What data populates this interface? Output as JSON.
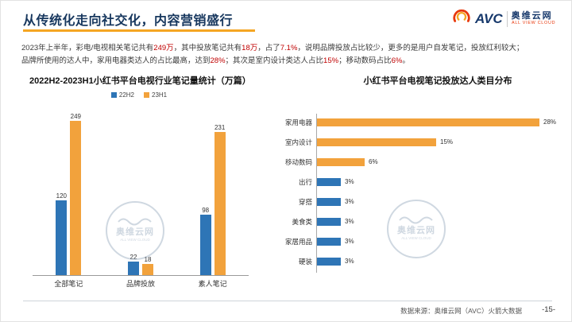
{
  "slide": {
    "title": "从传统化走向社交化，内容营销盛行",
    "footer": {
      "source": "数据来源：奥维云网（AVC）火箭大数据",
      "page": "-15-"
    }
  },
  "logo": {
    "abbr": "AVC",
    "name": "奥维云网",
    "tagline": "ALL VIEW CLOUD"
  },
  "watermark": {
    "name": "奥维云网",
    "tagline": "ALL VIEW CLOUD"
  },
  "body": {
    "line1": [
      {
        "text": "2023年上半年，彩电/电视相关笔记共有",
        "red": false
      },
      {
        "text": "249万",
        "red": true
      },
      {
        "text": "，其中投放笔记共有",
        "red": false
      },
      {
        "text": "18万",
        "red": true
      },
      {
        "text": "，占了",
        "red": false
      },
      {
        "text": "7.1%",
        "red": true
      },
      {
        "text": "，说明品牌投放占比较少，更多的是用户自发笔记，投放红利较大；",
        "red": false
      }
    ],
    "line2": [
      {
        "text": "品牌所使用的达人中，家用电器类达人的占比最高，达到",
        "red": false
      },
      {
        "text": "28%",
        "red": true
      },
      {
        "text": "；其次是室内设计类达人占比",
        "red": false
      },
      {
        "text": "15%",
        "red": true
      },
      {
        "text": "；移动数码占比",
        "red": false
      },
      {
        "text": "6%",
        "red": true
      },
      {
        "text": "。",
        "red": false
      }
    ]
  },
  "chart_data": [
    {
      "type": "bar",
      "title": "2022H2-2023H1小红书平台电视行业笔记量统计（万篇）",
      "categories": [
        "全部笔记",
        "品牌投放",
        "素人笔记"
      ],
      "series": [
        {
          "name": "22H2",
          "color": "#2e75b6",
          "values": [
            120,
            22,
            98
          ]
        },
        {
          "name": "23H1",
          "color": "#f2a23c",
          "values": [
            249,
            18,
            231
          ]
        }
      ],
      "ylim": [
        0,
        260
      ],
      "data_labels": true,
      "legend_position": "top",
      "grid": false
    },
    {
      "type": "bar",
      "orientation": "horizontal",
      "title": "小红书平台电视笔记投放达人类目分布",
      "categories": [
        "家用电器",
        "室内设计",
        "移动数码",
        "出行",
        "穿搭",
        "美食类",
        "家居用品",
        "硬装"
      ],
      "values": [
        28,
        15,
        6,
        3,
        3,
        3,
        3,
        3
      ],
      "value_labels": [
        "28%",
        "15%",
        "6%",
        "3%",
        "3%",
        "3%",
        "3%",
        "3%"
      ],
      "bar_colors": [
        "#f2a23c",
        "#f2a23c",
        "#f2a23c",
        "#2e75b6",
        "#2e75b6",
        "#2e75b6",
        "#2e75b6",
        "#2e75b6"
      ],
      "xlim": [
        0,
        30
      ],
      "grid": false
    }
  ]
}
